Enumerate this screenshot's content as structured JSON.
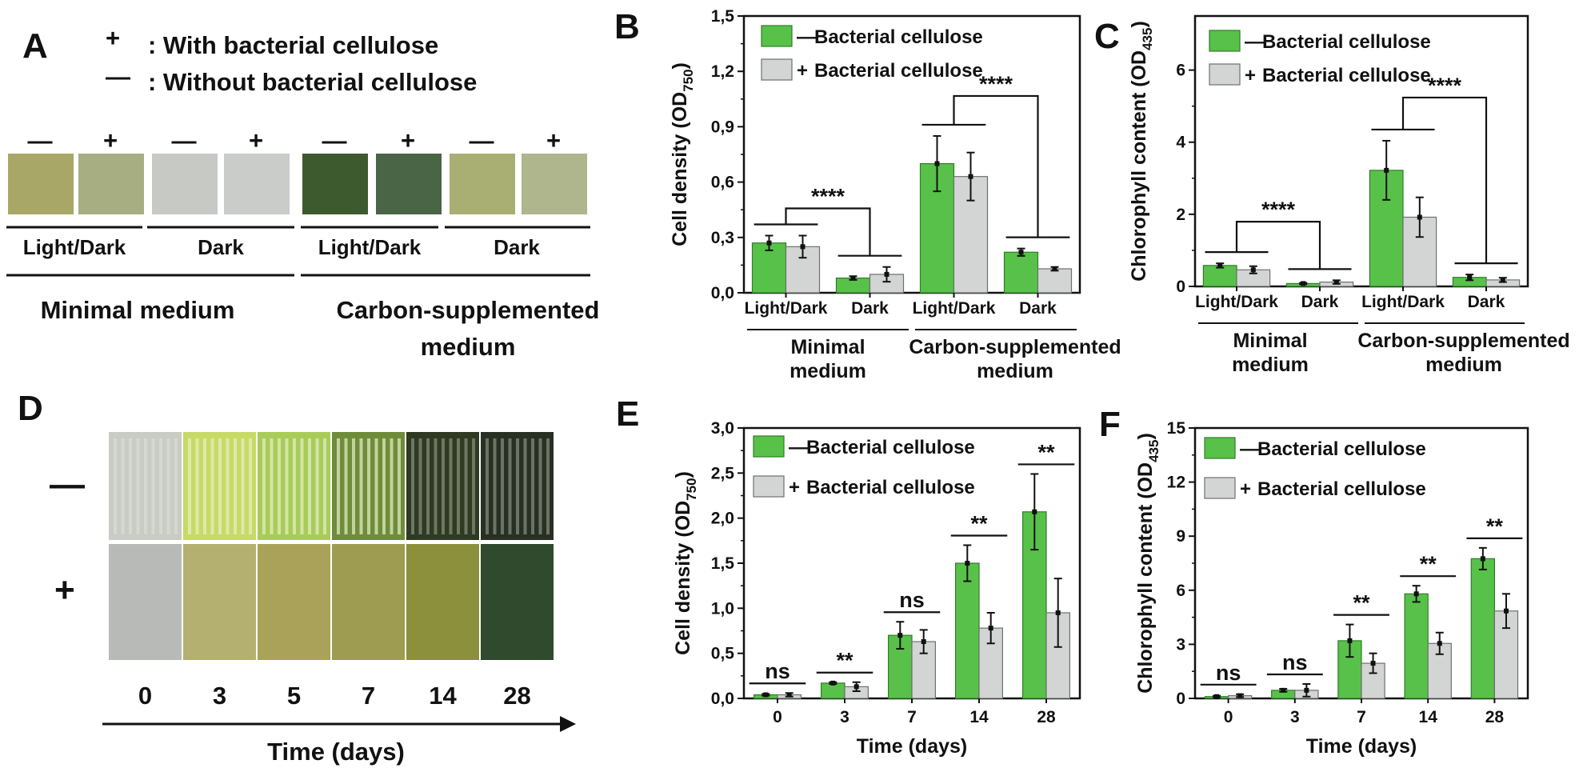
{
  "colors": {
    "minus": "#58C149",
    "plus": "#D3D5D5",
    "minus_stroke": "#2F7D27",
    "plus_stroke": "#6E7070"
  },
  "panelA": {
    "label": "A",
    "legend_plus_symbol": "+",
    "legend_plus_text": ": With bacterial cellulose",
    "legend_minus_symbol": "—",
    "legend_minus_text": ": Without bacterial cellulose",
    "signs": [
      "—",
      "+",
      "—",
      "+",
      "—",
      "+",
      "—",
      "+"
    ],
    "swatch_colors": [
      "#A9A767",
      "#A6AE82",
      "#C7CAC4",
      "#C9CCC9",
      "#3D5A2F",
      "#4A6446",
      "#A9AE72",
      "#AFB58D"
    ],
    "conditions": [
      "Light/Dark",
      "Dark",
      "Light/Dark",
      "Dark"
    ],
    "media": [
      "Minimal medium",
      "Carbon-supplemented",
      "medium"
    ]
  },
  "panelD": {
    "label": "D",
    "row_minus": "—",
    "row_plus": "+",
    "days": [
      "0",
      "3",
      "5",
      "7",
      "14",
      "28"
    ],
    "top_colors": [
      "#C8CCC4",
      "#C8DA66",
      "#A8CC58",
      "#6E8C3A",
      "#2E3A22",
      "#283024"
    ],
    "bottom_colors": [
      "#B7BAB7",
      "#B4B070",
      "#ABA25A",
      "#9E9C50",
      "#8C903C",
      "#2F4A2C"
    ],
    "axis_title": "Time (days)"
  },
  "chart_data": [
    {
      "panel": "B",
      "type": "bar",
      "categories": [
        "Light/Dark",
        "Dark",
        "Light/Dark",
        "Dark"
      ],
      "groups": [
        [
          "Minimal",
          "medium"
        ],
        [
          "Carbon-supplemented",
          "medium"
        ]
      ],
      "series": [
        {
          "name": "Bacterial cellulose",
          "sign": "—",
          "values": [
            0.27,
            0.08,
            0.7,
            0.22
          ],
          "errors": [
            0.04,
            0.01,
            0.15,
            0.02
          ]
        },
        {
          "name": "Bacterial cellulose",
          "sign": "+",
          "values": [
            0.25,
            0.1,
            0.63,
            0.13
          ],
          "errors": [
            0.06,
            0.04,
            0.13,
            0.01
          ]
        }
      ],
      "ylabel": "Cell density (OD",
      "ylabel_sub": "750",
      "ylabel_end": ")",
      "ylim": [
        0,
        1.5
      ],
      "yticks": [
        "0,0",
        "0,3",
        "0,6",
        "0,9",
        "1,2",
        "1,5"
      ],
      "significance": [
        "****",
        "****"
      ],
      "legend": "top-left"
    },
    {
      "panel": "C",
      "type": "bar",
      "categories": [
        "Light/Dark",
        "Dark",
        "Light/Dark",
        "Dark"
      ],
      "groups": [
        [
          "Minimal",
          "medium"
        ],
        [
          "Carbon-supplemented",
          "medium"
        ]
      ],
      "series": [
        {
          "name": "Bacterial cellulose",
          "sign": "—",
          "values": [
            0.58,
            0.08,
            3.22,
            0.25
          ],
          "errors": [
            0.06,
            0.02,
            0.82,
            0.08
          ]
        },
        {
          "name": "Bacterial cellulose",
          "sign": "+",
          "values": [
            0.46,
            0.12,
            1.92,
            0.18
          ],
          "errors": [
            0.1,
            0.05,
            0.55,
            0.06
          ]
        }
      ],
      "ylabel": "Chlorophyll content (OD",
      "ylabel_sub": "435",
      "ylabel_end": ")",
      "ylim": [
        0,
        7.5
      ],
      "yticks": [
        "0",
        "2",
        "4",
        "6"
      ],
      "significance": [
        "****",
        "****"
      ],
      "legend": "top-left"
    },
    {
      "panel": "E",
      "type": "bar",
      "categories": [
        "0",
        "3",
        "7",
        "14",
        "28"
      ],
      "series": [
        {
          "name": "Bacterial cellulose",
          "sign": "—",
          "values": [
            0.04,
            0.17,
            0.7,
            1.5,
            2.07
          ],
          "errors": [
            0.01,
            0.01,
            0.15,
            0.2,
            0.42
          ]
        },
        {
          "name": "Bacterial cellulose",
          "sign": "+",
          "values": [
            0.04,
            0.13,
            0.63,
            0.78,
            0.95
          ],
          "errors": [
            0.02,
            0.05,
            0.13,
            0.17,
            0.38
          ]
        }
      ],
      "xlabel": "Time (days)",
      "ylabel": "Cell density (OD",
      "ylabel_sub": "750",
      "ylabel_end": ")",
      "ylim": [
        0,
        3.0
      ],
      "yticks": [
        "0,0",
        "0,5",
        "1,0",
        "1,5",
        "2,0",
        "2,5",
        "3,0"
      ],
      "significance": [
        "ns",
        "**",
        "ns",
        "**",
        "**"
      ],
      "legend": "top-left"
    },
    {
      "panel": "F",
      "type": "bar",
      "categories": [
        "0",
        "3",
        "7",
        "14",
        "28"
      ],
      "series": [
        {
          "name": "Bacterial cellulose",
          "sign": "—",
          "values": [
            0.1,
            0.45,
            3.2,
            5.8,
            7.75
          ],
          "errors": [
            0.05,
            0.08,
            0.9,
            0.45,
            0.6
          ]
        },
        {
          "name": "Bacterial cellulose",
          "sign": "+",
          "values": [
            0.15,
            0.45,
            1.95,
            3.05,
            4.85
          ],
          "errors": [
            0.08,
            0.35,
            0.55,
            0.6,
            0.95
          ]
        }
      ],
      "xlabel": "Time (days)",
      "ylabel": "Chlorophyll content (OD",
      "ylabel_sub": "435",
      "ylabel_end": ")",
      "ylim": [
        0,
        15
      ],
      "yticks": [
        "0",
        "3",
        "6",
        "9",
        "12",
        "15"
      ],
      "significance": [
        "ns",
        "ns",
        "**",
        "**",
        "**"
      ],
      "legend": "top-left"
    }
  ]
}
